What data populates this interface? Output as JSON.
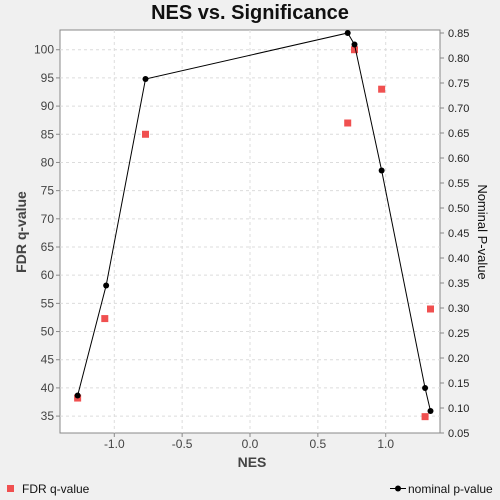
{
  "chart_data": {
    "type": "scatter",
    "title": "NES vs. Significance",
    "xlabel": "NES",
    "ylabel": "FDR q-value",
    "y2label": "Nominal P-value",
    "xlim": [
      -1.4,
      1.4
    ],
    "ylim": [
      32,
      103.5
    ],
    "y2lim": [
      0.05,
      0.856
    ],
    "x_ticks": [
      "-1.0",
      "-0.5",
      "0.0",
      "0.5",
      "1.0"
    ],
    "y_ticks": [
      "35",
      "40",
      "45",
      "50",
      "55",
      "60",
      "65",
      "70",
      "75",
      "80",
      "85",
      "90",
      "95",
      "100"
    ],
    "y2_ticks": [
      "0.05",
      "0.10",
      "0.15",
      "0.20",
      "0.25",
      "0.30",
      "0.35",
      "0.40",
      "0.45",
      "0.50",
      "0.55",
      "0.60",
      "0.65",
      "0.70",
      "0.75",
      "0.80",
      "0.85"
    ],
    "grid": true,
    "legend_position": "bottom",
    "series": [
      {
        "name": "FDR q-value",
        "axis": "left",
        "style": "square-markers",
        "color": "#f05050",
        "x": [
          -1.27,
          -1.07,
          -0.77,
          0.72,
          0.77,
          0.97,
          1.29,
          1.33
        ],
        "y": [
          38.2,
          52.3,
          85.0,
          87.0,
          100.0,
          93.0,
          34.9,
          54.0
        ]
      },
      {
        "name": "nominal p-value",
        "axis": "right",
        "style": "line-with-dots",
        "color": "#000000",
        "x": [
          -1.27,
          -1.06,
          -0.77,
          0.72,
          0.77,
          0.97,
          1.29,
          1.33
        ],
        "y": [
          0.125,
          0.345,
          0.758,
          0.85,
          0.827,
          0.575,
          0.14,
          0.094
        ]
      }
    ]
  }
}
